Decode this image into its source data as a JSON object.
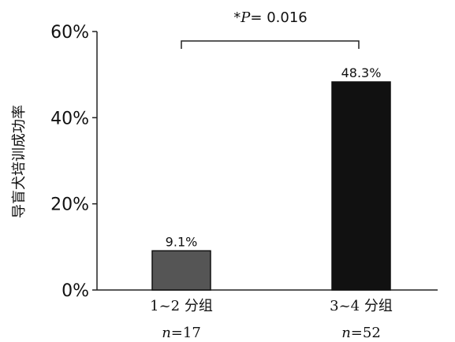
{
  "chart_data": {
    "type": "bar",
    "ylabel": "导盲犬培训成功率",
    "ylim": [
      0,
      60
    ],
    "yticks": [
      0,
      20,
      40,
      60
    ],
    "ytick_labels": [
      "0%",
      "20%",
      "40%",
      "60%"
    ],
    "categories": [
      "1~2 分组",
      "3~4 分组"
    ],
    "n_labels": [
      {
        "prefix": "n",
        "text": "=17"
      },
      {
        "prefix": "n",
        "text": "=52"
      }
    ],
    "values": [
      9.1,
      48.3
    ],
    "value_labels": [
      "9.1%",
      "48.3%"
    ],
    "bar_colors": [
      "#555555",
      "#111111"
    ],
    "annotation": {
      "star": "*",
      "p": "P",
      "rest": "= 0.016"
    }
  }
}
